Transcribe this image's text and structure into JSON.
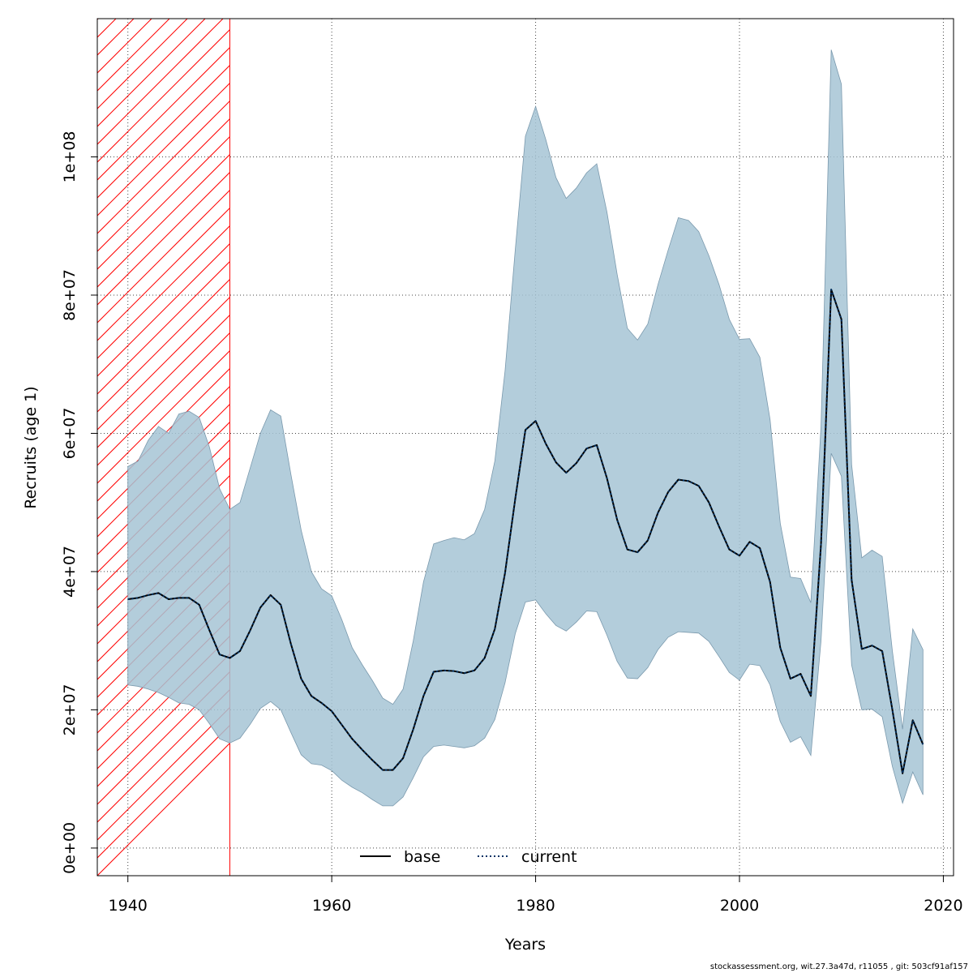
{
  "chart_data": {
    "type": "area",
    "xlabel": "Years",
    "ylabel": "Recruits (age 1)",
    "xlim": [
      1937,
      2021
    ],
    "ylim": [
      -4000000,
      120000000
    ],
    "xticks": [
      1940,
      1960,
      1980,
      2000,
      2020
    ],
    "yticks": [
      0,
      20000000,
      40000000,
      60000000,
      80000000,
      100000000
    ],
    "ytick_labels": [
      "0e+00",
      "2e+07",
      "4e+07",
      "6e+07",
      "8e+07",
      "1e+08"
    ],
    "grid": true,
    "legend_placement": "bottom-center",
    "shaded_region": {
      "x_range": [
        1937,
        1950
      ],
      "color": "#ff0000",
      "pattern": "hatched"
    },
    "colors": {
      "band": "#a6c4d5",
      "band_outline": "#7a99ad",
      "current": "#003366",
      "base": "#000000",
      "hatch": "#ff0000"
    },
    "x": [
      1940,
      1941,
      1942,
      1943,
      1944,
      1945,
      1946,
      1947,
      1948,
      1949,
      1950,
      1951,
      1952,
      1953,
      1954,
      1955,
      1956,
      1957,
      1958,
      1959,
      1960,
      1961,
      1962,
      1963,
      1964,
      1965,
      1966,
      1967,
      1968,
      1969,
      1970,
      1971,
      1972,
      1973,
      1974,
      1975,
      1976,
      1977,
      1978,
      1979,
      1980,
      1981,
      1982,
      1983,
      1984,
      1985,
      1986,
      1987,
      1988,
      1989,
      1990,
      1991,
      1992,
      1993,
      1994,
      1995,
      1996,
      1997,
      1998,
      1999,
      2000,
      2001,
      2002,
      2003,
      2004,
      2005,
      2006,
      2007,
      2008,
      2009,
      2010,
      2011,
      2012,
      2013,
      2014,
      2015,
      2016,
      2017,
      2018
    ],
    "series": [
      {
        "name": "base",
        "style": "solid",
        "values": [
          36000000,
          36200000,
          36600000,
          36900000,
          36000000,
          36200000,
          36200000,
          35200000,
          31500000,
          28000000,
          27500000,
          28500000,
          31500000,
          34800000,
          36600000,
          35200000,
          29500000,
          24500000,
          22000000,
          21000000,
          19800000,
          17800000,
          15800000,
          14200000,
          12700000,
          11300000,
          11300000,
          13000000,
          17200000,
          22000000,
          25500000,
          25700000,
          25600000,
          25300000,
          25700000,
          27500000,
          31700000,
          39800000,
          50500000,
          60500000,
          61800000,
          58500000,
          55800000,
          54300000,
          55700000,
          57800000,
          58300000,
          53500000,
          47500000,
          43200000,
          42800000,
          44500000,
          48500000,
          51500000,
          53300000,
          53100000,
          52400000,
          50000000,
          46500000,
          43200000,
          42300000,
          44300000,
          43400000,
          38500000,
          29000000,
          24500000,
          25200000,
          22000000,
          44000000,
          80800000,
          76500000,
          38800000,
          28800000,
          29300000,
          28500000,
          20000000,
          10800000,
          18500000,
          15000000
        ]
      },
      {
        "name": "current",
        "style": "dotted",
        "values": [
          36000000,
          36200000,
          36600000,
          36900000,
          36000000,
          36200000,
          36200000,
          35200000,
          31500000,
          28000000,
          27500000,
          28500000,
          31500000,
          34800000,
          36600000,
          35200000,
          29500000,
          24500000,
          22000000,
          21000000,
          19800000,
          17800000,
          15800000,
          14200000,
          12700000,
          11300000,
          11300000,
          13000000,
          17200000,
          22000000,
          25500000,
          25700000,
          25600000,
          25300000,
          25700000,
          27500000,
          31700000,
          39800000,
          50500000,
          60500000,
          61800000,
          58500000,
          55800000,
          54300000,
          55700000,
          57800000,
          58300000,
          53500000,
          47500000,
          43200000,
          42800000,
          44500000,
          48500000,
          51500000,
          53300000,
          53100000,
          52400000,
          50000000,
          46500000,
          43200000,
          42300000,
          44300000,
          43400000,
          38500000,
          29000000,
          24500000,
          25200000,
          22000000,
          44000000,
          80800000,
          76500000,
          38800000,
          28800000,
          29300000,
          28500000,
          20000000,
          10800000,
          18500000,
          15000000
        ]
      }
    ],
    "band": {
      "upper": [
        55200000,
        56000000,
        59000000,
        61000000,
        60000000,
        62800000,
        63200000,
        62300000,
        58000000,
        52000000,
        49000000,
        50000000,
        55000000,
        60000000,
        63400000,
        62500000,
        54000000,
        46000000,
        40000000,
        37500000,
        36500000,
        33000000,
        29000000,
        26500000,
        24200000,
        21700000,
        20800000,
        23000000,
        30000000,
        38500000,
        44000000,
        44500000,
        44900000,
        44600000,
        45500000,
        49000000,
        56000000,
        69000000,
        86500000,
        103000000,
        107300000,
        102500000,
        97000000,
        94000000,
        95500000,
        97700000,
        99000000,
        92000000,
        83000000,
        75200000,
        73500000,
        75800000,
        81500000,
        86500000,
        91200000,
        90800000,
        89200000,
        85700000,
        81500000,
        76500000,
        73600000,
        73700000,
        71000000,
        62000000,
        47000000,
        39200000,
        39000000,
        35500000,
        61000000,
        115500000,
        110500000,
        55500000,
        42000000,
        43100000,
        42200000,
        28500000,
        17200000,
        31700000,
        28700000
      ],
      "lower": [
        23600000,
        23400000,
        23000000,
        22500000,
        21800000,
        21000000,
        20800000,
        20000000,
        18000000,
        15800000,
        15200000,
        15900000,
        17900000,
        20200000,
        21200000,
        20000000,
        16700000,
        13500000,
        12200000,
        12000000,
        11200000,
        9800000,
        8800000,
        8000000,
        7000000,
        6100000,
        6100000,
        7400000,
        10200000,
        13200000,
        14700000,
        14900000,
        14700000,
        14500000,
        14800000,
        15900000,
        18600000,
        23900000,
        31000000,
        35600000,
        35900000,
        33900000,
        32200000,
        31400000,
        32700000,
        34300000,
        34200000,
        30800000,
        27000000,
        24600000,
        24500000,
        26100000,
        28700000,
        30500000,
        31300000,
        31200000,
        31100000,
        29900000,
        27700000,
        25400000,
        24300000,
        26600000,
        26400000,
        23600000,
        18300000,
        15300000,
        16100000,
        13400000,
        30000000,
        57100000,
        53800000,
        26500000,
        20000000,
        20100000,
        19000000,
        11800000,
        6500000,
        11000000,
        7700000
      ]
    }
  },
  "footer_text": "stockassessment.org, wit.27.3a47d, r11055 , git: 503cf91af157"
}
